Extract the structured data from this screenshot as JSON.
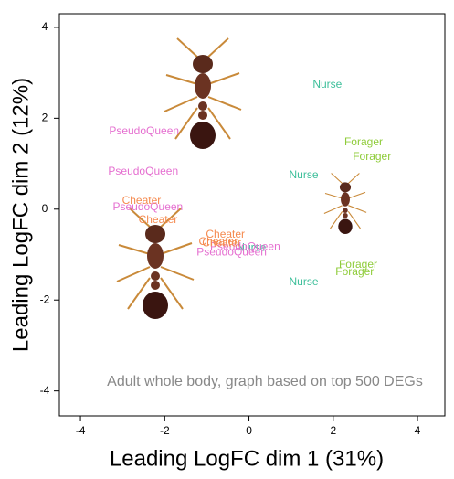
{
  "chart_data": {
    "type": "scatter",
    "x_label": "Leading LogFC dim 1 (31%)",
    "y_label": "Leading LogFC dim 2 (12%)",
    "annotation": "Adult whole body, graph based on top 500 DEGs",
    "xlim": [
      -4.5,
      4.65
    ],
    "ylim": [
      -4.55,
      4.3
    ],
    "xticks": [
      -4,
      -2,
      0,
      2,
      4
    ],
    "yticks": [
      -4,
      -2,
      0,
      2,
      4
    ],
    "series": [
      {
        "name": "Nurse",
        "color": "#3dbf9a",
        "x": [
          1.86,
          1.3,
          0.06,
          1.3
        ],
        "y": [
          2.73,
          0.74,
          -0.86,
          -1.61
        ]
      },
      {
        "name": "Forager",
        "color": "#8fcc3a",
        "x": [
          2.72,
          2.92,
          2.59,
          2.51
        ],
        "y": [
          1.47,
          1.15,
          -1.23,
          -1.39
        ]
      },
      {
        "name": "PseudoQueen",
        "color": "#e56fd0",
        "x": [
          -2.49,
          -2.51,
          -2.4,
          -0.09,
          -0.41
        ],
        "y": [
          1.71,
          0.82,
          0.04,
          -0.84,
          -0.96
        ]
      },
      {
        "name": "Cheater",
        "color": "#f58a4f",
        "x": [
          -2.55,
          -2.16,
          -0.56,
          -0.73,
          -0.65
        ],
        "y": [
          0.18,
          -0.24,
          -0.56,
          -0.72,
          -0.76
        ]
      }
    ]
  }
}
